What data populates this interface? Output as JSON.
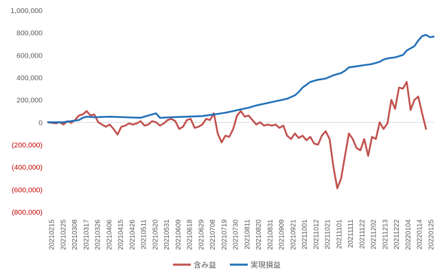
{
  "chart_data": {
    "type": "line",
    "title": "",
    "xlabel": "",
    "ylabel": "",
    "ylim": [
      -800000,
      1000000
    ],
    "y_ticks": [
      {
        "value": 1000000,
        "label": "1,000,000"
      },
      {
        "value": 800000,
        "label": "800,000"
      },
      {
        "value": 600000,
        "label": "600,000"
      },
      {
        "value": 400000,
        "label": "400,000"
      },
      {
        "value": 200000,
        "label": "200,000"
      },
      {
        "value": 0,
        "label": "0"
      },
      {
        "value": -200000,
        "label": "(200,000)"
      },
      {
        "value": -400000,
        "label": "(400,000)"
      },
      {
        "value": -600000,
        "label": "(600,000)"
      },
      {
        "value": -800000,
        "label": "(800,000)"
      }
    ],
    "x_ticks": [
      "20210215",
      "20210225",
      "20210308",
      "20210317",
      "20210326",
      "20210406",
      "20210415",
      "20210426",
      "20210511",
      "20210520",
      "20210531",
      "20210609",
      "20210618",
      "20210629",
      "20210708",
      "20210719",
      "20210730",
      "20210811",
      "20210820",
      "20210831",
      "20210909",
      "20210921",
      "20211001",
      "20211012",
      "20211021",
      "20211101",
      "20211111",
      "20211122",
      "20211202",
      "20211213",
      "20211222",
      "20220104",
      "20220114",
      "20220125"
    ],
    "grid": false,
    "legend_position": "bottom",
    "series": [
      {
        "name": "含み益",
        "color": "#c0504d",
        "points": [
          [
            0,
            0
          ],
          [
            1,
            -10000
          ],
          [
            1.5,
            0
          ],
          [
            2,
            -20000
          ],
          [
            2.5,
            10000
          ],
          [
            3,
            -5000
          ],
          [
            3.5,
            20000
          ],
          [
            4,
            60000
          ],
          [
            4.5,
            70000
          ],
          [
            5,
            100000
          ],
          [
            5.5,
            60000
          ],
          [
            6,
            70000
          ],
          [
            6.5,
            0
          ],
          [
            7,
            -20000
          ],
          [
            7.5,
            -40000
          ],
          [
            8,
            -20000
          ],
          [
            8.5,
            -60000
          ],
          [
            9,
            -110000
          ],
          [
            9.5,
            -40000
          ],
          [
            10,
            -30000
          ],
          [
            10.5,
            -10000
          ],
          [
            11,
            -20000
          ],
          [
            11.5,
            -10000
          ],
          [
            12,
            10000
          ],
          [
            12.5,
            -30000
          ],
          [
            13,
            -20000
          ],
          [
            13.5,
            10000
          ],
          [
            14,
            0
          ],
          [
            14.5,
            -30000
          ],
          [
            15,
            -10000
          ],
          [
            15.5,
            20000
          ],
          [
            16,
            30000
          ],
          [
            16.5,
            10000
          ],
          [
            17,
            -60000
          ],
          [
            17.5,
            -40000
          ],
          [
            18,
            20000
          ],
          [
            18.5,
            30000
          ],
          [
            19,
            -50000
          ],
          [
            19.5,
            -40000
          ],
          [
            20,
            -20000
          ],
          [
            20.5,
            30000
          ],
          [
            21,
            20000
          ],
          [
            21.5,
            80000
          ],
          [
            22,
            -100000
          ],
          [
            22.5,
            -180000
          ],
          [
            23,
            -120000
          ],
          [
            23.5,
            -130000
          ],
          [
            24,
            -60000
          ],
          [
            24.5,
            60000
          ],
          [
            25,
            100000
          ],
          [
            25.5,
            50000
          ],
          [
            26,
            60000
          ],
          [
            26.5,
            20000
          ],
          [
            27,
            -20000
          ],
          [
            27.5,
            0
          ],
          [
            28,
            -30000
          ],
          [
            28.5,
            -20000
          ],
          [
            29,
            -30000
          ],
          [
            29.5,
            -20000
          ],
          [
            30,
            -50000
          ],
          [
            30.5,
            -30000
          ],
          [
            31,
            -120000
          ],
          [
            31.5,
            -150000
          ],
          [
            32,
            -100000
          ],
          [
            32.5,
            -140000
          ],
          [
            33,
            -120000
          ],
          [
            33.5,
            -160000
          ],
          [
            34,
            -130000
          ],
          [
            34.5,
            -190000
          ],
          [
            35,
            -200000
          ],
          [
            35.5,
            -120000
          ],
          [
            36,
            -80000
          ],
          [
            36.5,
            -150000
          ],
          [
            37,
            -400000
          ],
          [
            37.5,
            -590000
          ],
          [
            38,
            -500000
          ],
          [
            38.5,
            -300000
          ],
          [
            39,
            -100000
          ],
          [
            39.5,
            -150000
          ],
          [
            40,
            -230000
          ],
          [
            40.5,
            -250000
          ],
          [
            41,
            -150000
          ],
          [
            41.5,
            -300000
          ],
          [
            42,
            -130000
          ],
          [
            42.5,
            -150000
          ],
          [
            43,
            0
          ],
          [
            43.5,
            -60000
          ],
          [
            44,
            -10000
          ],
          [
            44.5,
            200000
          ],
          [
            45,
            120000
          ],
          [
            45.5,
            310000
          ],
          [
            46,
            300000
          ],
          [
            46.5,
            360000
          ],
          [
            47,
            110000
          ],
          [
            47.5,
            200000
          ],
          [
            48,
            230000
          ],
          [
            48.5,
            80000
          ],
          [
            49,
            -60000
          ]
        ]
      },
      {
        "name": "実現損益",
        "color": "#2170b8",
        "points": [
          [
            0,
            0
          ],
          [
            2,
            0
          ],
          [
            3,
            10000
          ],
          [
            4,
            20000
          ],
          [
            4.5,
            40000
          ],
          [
            5,
            50000
          ],
          [
            6,
            45000
          ],
          [
            8,
            50000
          ],
          [
            10,
            45000
          ],
          [
            12,
            40000
          ],
          [
            13,
            60000
          ],
          [
            14,
            80000
          ],
          [
            14.5,
            40000
          ],
          [
            16,
            45000
          ],
          [
            18,
            50000
          ],
          [
            20,
            55000
          ],
          [
            21,
            65000
          ],
          [
            22,
            75000
          ],
          [
            23,
            85000
          ],
          [
            24,
            100000
          ],
          [
            25,
            115000
          ],
          [
            26,
            130000
          ],
          [
            27,
            150000
          ],
          [
            28,
            165000
          ],
          [
            29,
            180000
          ],
          [
            30,
            195000
          ],
          [
            31,
            210000
          ],
          [
            32,
            240000
          ],
          [
            32.5,
            270000
          ],
          [
            33,
            310000
          ],
          [
            34,
            360000
          ],
          [
            35,
            380000
          ],
          [
            36,
            390000
          ],
          [
            37,
            420000
          ],
          [
            38,
            440000
          ],
          [
            38.5,
            460000
          ],
          [
            39,
            490000
          ],
          [
            40,
            500000
          ],
          [
            41,
            510000
          ],
          [
            42,
            520000
          ],
          [
            43,
            540000
          ],
          [
            43.5,
            560000
          ],
          [
            44,
            570000
          ],
          [
            45,
            580000
          ],
          [
            46,
            600000
          ],
          [
            46.5,
            640000
          ],
          [
            47,
            660000
          ],
          [
            47.5,
            680000
          ],
          [
            48,
            730000
          ],
          [
            48.5,
            770000
          ],
          [
            49,
            780000
          ],
          [
            49.5,
            760000
          ],
          [
            50,
            765000
          ]
        ]
      }
    ]
  }
}
